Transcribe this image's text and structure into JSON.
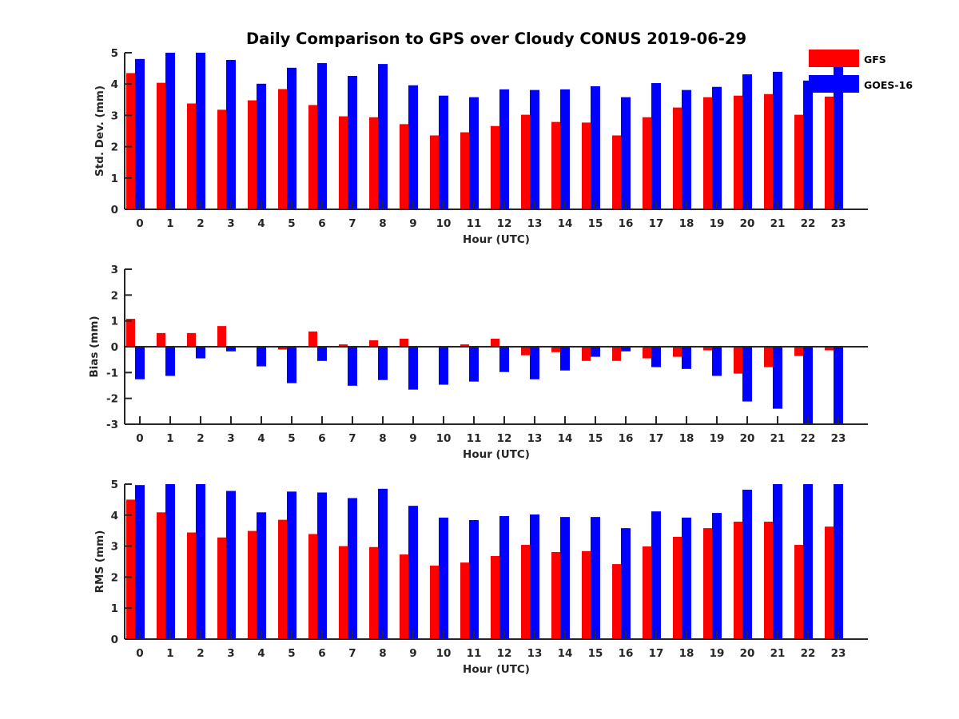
{
  "chart_data": {
    "type": "bar",
    "title": "Daily Comparison to GPS over Cloudy CONUS 2019-06-29",
    "legend": {
      "placement": "top-right",
      "entries": [
        {
          "name": "GFS",
          "color": "#ff0000"
        },
        {
          "name": "GOES-16",
          "color": "#0000ff"
        }
      ]
    },
    "categories": [
      "0",
      "1",
      "2",
      "3",
      "4",
      "5",
      "6",
      "7",
      "8",
      "9",
      "10",
      "11",
      "12",
      "13",
      "14",
      "15",
      "16",
      "17",
      "18",
      "19",
      "20",
      "21",
      "22",
      "23"
    ],
    "panels": [
      {
        "id": "std",
        "xlabel": "Hour (UTC)",
        "ylabel": "Std. Dev. (mm)",
        "ylim": [
          0,
          5
        ],
        "yticks": [
          "0",
          "1",
          "2",
          "3",
          "4",
          "5"
        ],
        "grid": false,
        "series": [
          {
            "name": "GFS",
            "color": "#ff0000",
            "values": [
              4.35,
              4.04,
              3.38,
              3.18,
              3.48,
              3.84,
              3.33,
              2.97,
              2.94,
              2.72,
              2.36,
              2.46,
              2.66,
              3.02,
              2.79,
              2.77,
              2.36,
              2.94,
              3.25,
              3.58,
              3.63,
              3.68,
              3.02,
              3.6
            ]
          },
          {
            "name": "GOES-16",
            "color": "#0000ff",
            "values": [
              4.8,
              5.0,
              5.0,
              4.77,
              4.01,
              4.52,
              4.67,
              4.26,
              4.64,
              3.96,
              3.63,
              3.58,
              3.83,
              3.81,
              3.83,
              3.93,
              3.58,
              4.03,
              3.81,
              3.91,
              4.31,
              4.39,
              4.11,
              4.58
            ]
          }
        ]
      },
      {
        "id": "bias",
        "xlabel": "Hour (UTC)",
        "ylabel": "Bias (mm)",
        "ylim": [
          -3,
          3
        ],
        "yticks": [
          "-3",
          "-2",
          "-1",
          "0",
          "1",
          "2",
          "3"
        ],
        "grid": false,
        "series": [
          {
            "name": "GFS",
            "color": "#ff0000",
            "values": [
              1.08,
              0.53,
              0.53,
              0.8,
              0.03,
              -0.11,
              0.59,
              0.09,
              0.25,
              0.31,
              0.03,
              0.09,
              0.31,
              -0.33,
              -0.21,
              -0.55,
              -0.55,
              -0.45,
              -0.39,
              -0.14,
              -1.04,
              -0.79,
              -0.36,
              -0.14
            ]
          },
          {
            "name": "GOES-16",
            "color": "#0000ff",
            "values": [
              -1.26,
              -1.13,
              -0.45,
              -0.18,
              -0.76,
              -1.41,
              -0.55,
              -1.51,
              -1.29,
              -1.66,
              -1.47,
              -1.35,
              -0.98,
              -1.26,
              -0.92,
              -0.39,
              -0.18,
              -0.79,
              -0.86,
              -1.13,
              -2.12,
              -2.4,
              -3.0,
              -3.0
            ]
          }
        ]
      },
      {
        "id": "rms",
        "xlabel": "Hour (UTC)",
        "ylabel": "RMS (mm)",
        "ylim": [
          0,
          5
        ],
        "yticks": [
          "0",
          "1",
          "2",
          "3",
          "4",
          "5"
        ],
        "grid": false,
        "series": [
          {
            "name": "GFS",
            "color": "#ff0000",
            "values": [
              4.5,
              4.09,
              3.44,
              3.28,
              3.49,
              3.85,
              3.39,
              3.0,
              2.97,
              2.73,
              2.37,
              2.47,
              2.68,
              3.04,
              2.81,
              2.84,
              2.42,
              2.99,
              3.3,
              3.58,
              3.79,
              3.79,
              3.04,
              3.63
            ]
          },
          {
            "name": "GOES-16",
            "color": "#0000ff",
            "values": [
              4.97,
              5.0,
              5.0,
              4.78,
              4.09,
              4.76,
              4.73,
              4.55,
              4.85,
              4.3,
              3.92,
              3.84,
              3.97,
              4.02,
              3.94,
              3.94,
              3.58,
              4.12,
              3.92,
              4.07,
              4.82,
              5.0,
              5.0,
              5.0
            ]
          }
        ]
      }
    ]
  }
}
